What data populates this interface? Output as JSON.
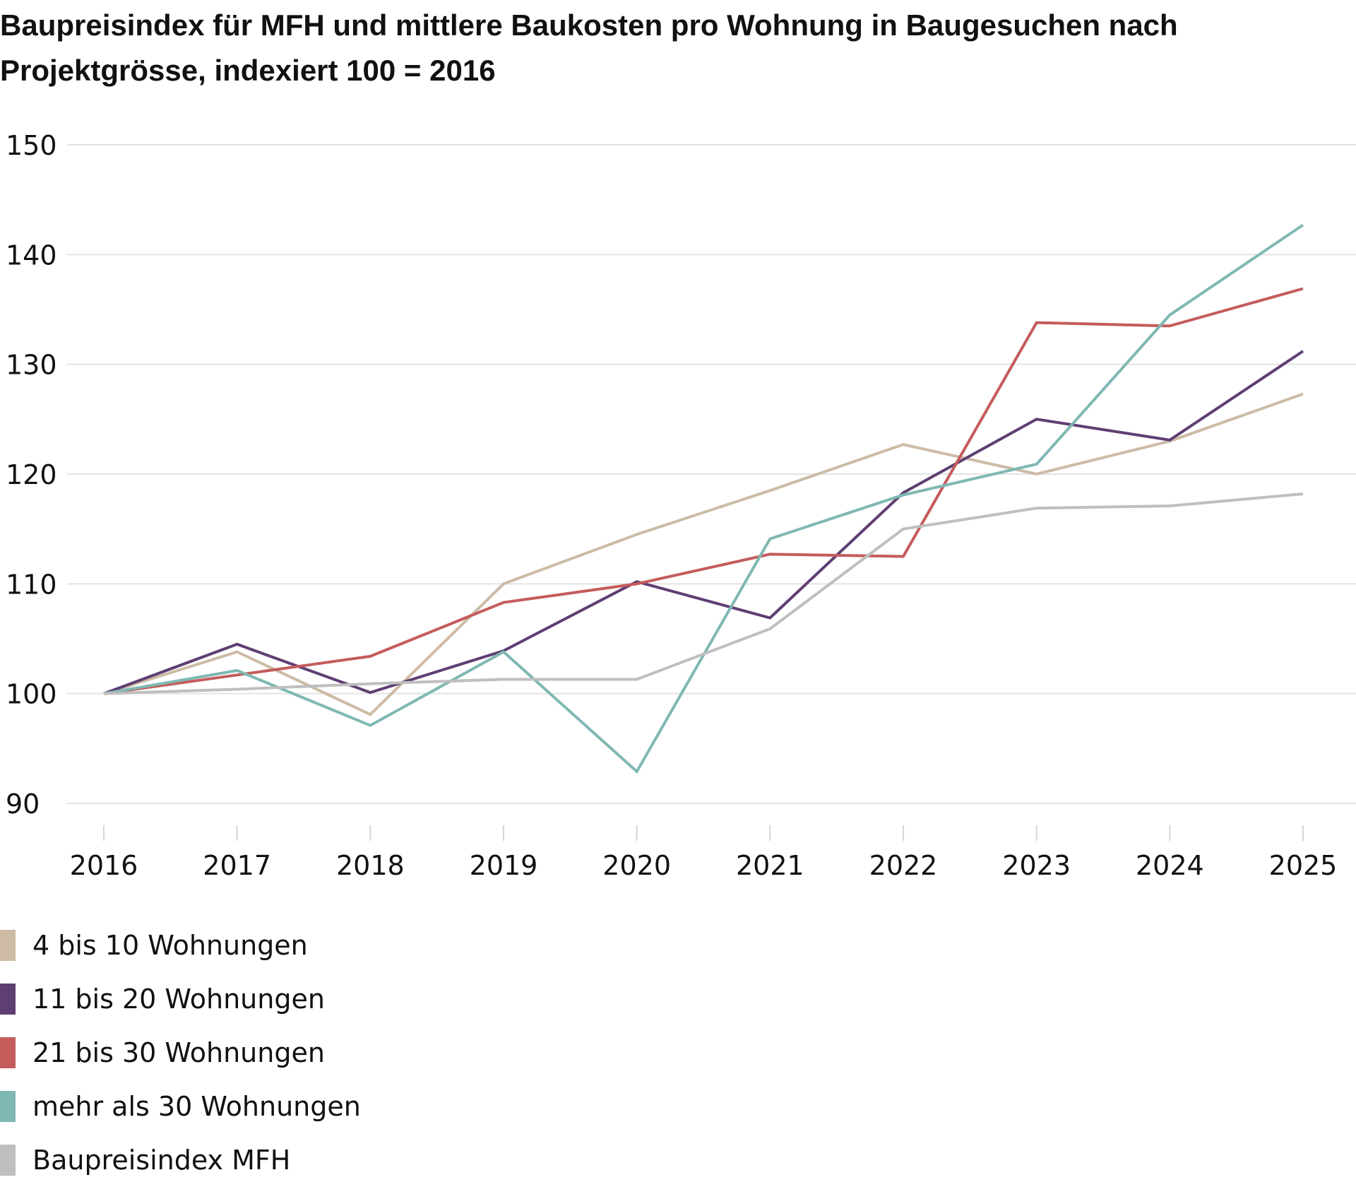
{
  "chart": {
    "title": "Baupreisindex für MFH und mittlere Baukosten pro Wohnung in Baugesuchen nach Projektgrösse, indexiert 100 = 2016"
  },
  "chart_data": {
    "type": "line",
    "title": "Baupreisindex für MFH und mittlere Baukosten pro Wohnung in Baugesuchen nach Projektgrösse, indexiert 100 = 2016",
    "xlabel": "",
    "ylabel": "",
    "x": [
      "2016",
      "2017",
      "2018",
      "2019",
      "2020",
      "2021",
      "2022",
      "2023",
      "2024",
      "2025"
    ],
    "ylim": [
      90,
      150
    ],
    "yticks": [
      "90",
      "100",
      "110",
      "120",
      "130",
      "140",
      "150"
    ],
    "grid": true,
    "legend_position": "bottom-left",
    "series": [
      {
        "name": "4 bis 10 Wohnungen",
        "color": "#cdbba6",
        "values": [
          100,
          103.8,
          98.1,
          110,
          114.5,
          118.5,
          122.7,
          120,
          123,
          127.3
        ]
      },
      {
        "name": "11 bis 20 Wohnungen",
        "color": "#5e3f73",
        "values": [
          100,
          104.5,
          100.1,
          103.9,
          110.2,
          106.9,
          118.3,
          125,
          123.1,
          131.2
        ]
      },
      {
        "name": "21 bis 30 Wohnungen",
        "color": "#c45c5c",
        "values": [
          100,
          101.7,
          103.4,
          108.3,
          110,
          112.7,
          112.5,
          133.8,
          133.5,
          136.9
        ]
      },
      {
        "name": "mehr als 30 Wohnungen",
        "color": "#7fb8b3",
        "values": [
          100,
          102.1,
          97.1,
          103.8,
          92.9,
          114.1,
          118.1,
          120.9,
          134.5,
          142.7
        ]
      },
      {
        "name": "Baupreisindex MFH",
        "color": "#bfbfbf",
        "values": [
          100,
          100.4,
          100.9,
          101.3,
          101.3,
          105.9,
          115,
          116.9,
          117.1,
          118.2
        ]
      }
    ]
  }
}
